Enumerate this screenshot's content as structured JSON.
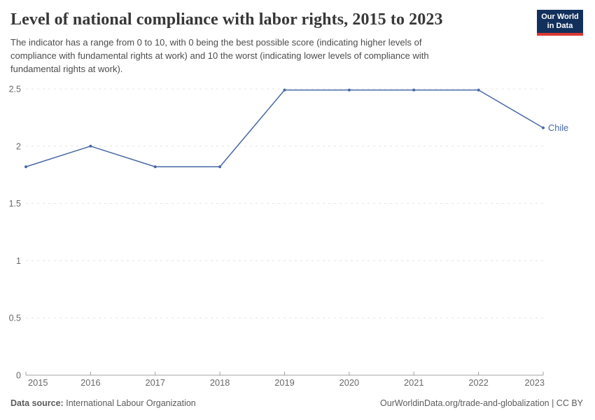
{
  "header": {
    "title": "Level of national compliance with labor rights, 2015 to 2023",
    "subtitle_lines": [
      "The indicator has a range from 0 to 10, with 0 being the best possible score (indicating higher levels of",
      "compliance with fundamental rights at work) and 10 the worst (indicating lower levels of compliance with",
      "fundamental rights at work)."
    ],
    "logo": {
      "line1": "Our World",
      "line2": "in Data",
      "bg_color": "#12305c",
      "bar_color": "#d93832"
    }
  },
  "chart_data": {
    "type": "line",
    "title": "Level of national compliance with labor rights, 2015 to 2023",
    "x": [
      2015,
      2016,
      2017,
      2018,
      2019,
      2020,
      2021,
      2022,
      2023
    ],
    "series": [
      {
        "name": "Chile",
        "color": "#4868a6",
        "values": [
          1.82,
          2,
          1.82,
          1.82,
          2.49,
          2.49,
          2.49,
          2.49,
          2.16
        ]
      }
    ],
    "entity_label": "Chile",
    "xlabel": "",
    "ylabel": "",
    "ylim": [
      0,
      2.5
    ],
    "yticks": [
      0,
      0.5,
      1,
      1.5,
      2,
      2.5
    ],
    "grid": true,
    "grid_style": "dashed",
    "legend_position": "end-of-line",
    "colors": {
      "grid": "#e4e4e4",
      "axis": "#a0a0a0",
      "tick_text": "#686868"
    }
  },
  "footer": {
    "source_label": "Data source:",
    "source_value": "International Labour Organization",
    "credit": "OurWorldinData.org/trade-and-globalization | CC BY"
  }
}
